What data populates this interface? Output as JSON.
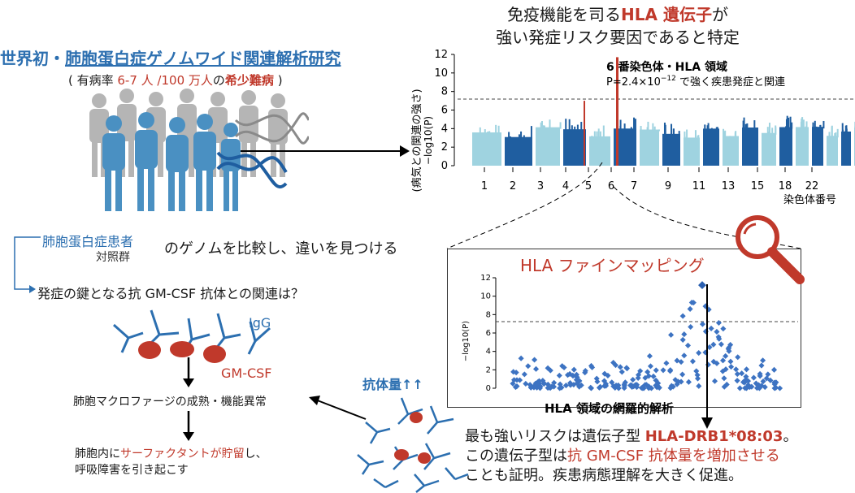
{
  "top_caption": {
    "line1_pre": "免疫機能を司る",
    "line1_red": "HLA 遺伝子",
    "line1_post": "が",
    "line2": "強い発症リスク要因であると特定"
  },
  "main_title": {
    "pre": "世界初・",
    "underlined": "肺胞蛋白症ゲノムワイド関連解析研究"
  },
  "sub_title": {
    "open": "( 有病率 ",
    "rate": "6-7 人 /100 万人",
    "mid": "の",
    "rare": "希少難病",
    "close": " )"
  },
  "compare": {
    "patients": "肺胞蛋白症患者",
    "controls": "対照群",
    "suffix": "のゲノムを比較し、違いを見つける"
  },
  "question": "発症の鍵となる抗 GM-CSF 抗体との関連は？",
  "antibody": {
    "igg": "IgG",
    "gmcsf": "GM-CSF",
    "amount": "抗体量↑↑"
  },
  "flow": {
    "step1": "肺胞マクロファージの成熟・機能異常",
    "step2_pre": "肺胞内に",
    "step2_red": "サーファクタントが貯留",
    "step2_post": "し、",
    "step3": "呼吸障害を引き起こす"
  },
  "manhattan": {
    "ylabel_main": "−log10(P)",
    "ylabel_sub": "(病気との関連の強さ)",
    "xlabel": "染色体番号",
    "y_ticks": [
      "0",
      "2",
      "4",
      "6",
      "8",
      "10",
      "12"
    ],
    "x_ticks": [
      "1",
      "2",
      "3",
      "4",
      "5",
      "6",
      "7",
      "9",
      "11",
      "13",
      "15",
      "18",
      "22"
    ],
    "annotation_title": "6 番染色体・HLA 領域",
    "annotation_p_pre": "P=2.4×10",
    "annotation_p_exp": "−12",
    "annotation_p_post": " で強く疾患発症と関連"
  },
  "finemapping": {
    "title": "HLA ファインマッピング",
    "ylabel": "−log10(P)",
    "y_ticks": [
      "0",
      "2",
      "4",
      "6",
      "8",
      "10",
      "12"
    ],
    "xlabel": "HLA 領域の網羅的解析"
  },
  "bottom": {
    "line1_pre": "最も強いリスクは遺伝子型 ",
    "line1_strong": "HLA-DRB1*08:03",
    "line1_post": "。",
    "line2_pre": "この遺伝子型は",
    "line2_red": "抗 GM-CSF 抗体量を増加させる",
    "line3": "ことも証明。疾患病態理解を大きく促進。"
  },
  "colors": {
    "blue": "#2c6fb0",
    "red": "#c0392b",
    "light_blue": "#9fd3e0",
    "dark_blue": "#1f5ea0",
    "silhouette_gray": "#b5b5b5"
  }
}
